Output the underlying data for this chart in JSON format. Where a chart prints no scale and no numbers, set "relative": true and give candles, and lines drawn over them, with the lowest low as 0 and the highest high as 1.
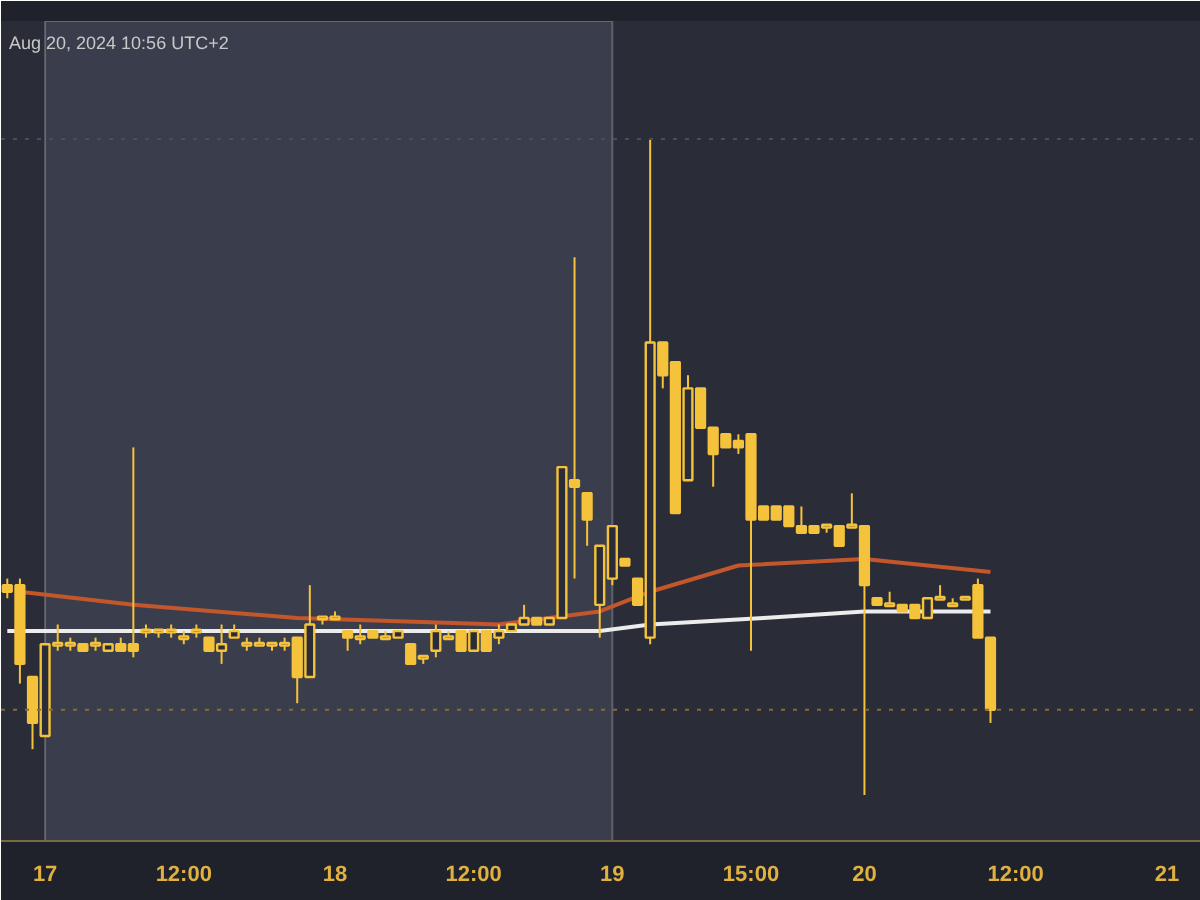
{
  "chart_data": {
    "type": "candlestick",
    "relative": true,
    "color": "#f5c23c",
    "annotations": [
      "Aug 20, 2024 10:56 UTC+2"
    ],
    "categories": [
      null,
      null,
      null,
      "17",
      null,
      null,
      null,
      null,
      null,
      null,
      null,
      null,
      null,
      null,
      "12:00",
      null,
      null,
      null,
      null,
      null,
      null,
      null,
      null,
      null,
      null,
      null,
      "18",
      null,
      null,
      null,
      null,
      null,
      null,
      null,
      null,
      null,
      null,
      "12:00",
      null,
      null,
      null,
      null,
      null,
      null,
      null,
      null,
      null,
      null,
      "19",
      null,
      null,
      null,
      null,
      null,
      null,
      null,
      null,
      null,
      null,
      "15:00",
      null,
      null,
      null,
      null,
      null,
      null,
      null,
      null,
      "20",
      null,
      null,
      null,
      null,
      null,
      null,
      null,
      null,
      null,
      null,
      null,
      "12:00",
      null,
      null,
      null,
      null,
      null,
      null,
      null,
      null,
      null,
      null,
      null,
      "21",
      null,
      null
    ],
    "ohlc": [
      [
        0.32,
        0.33,
        0.3,
        0.31
      ],
      [
        0.32,
        0.33,
        0.17,
        0.2
      ],
      [
        0.18,
        0.18,
        0.07,
        0.11
      ],
      [
        0.09,
        0.23,
        0.09,
        0.23
      ],
      [
        0.23,
        0.26,
        0.22,
        0.23
      ],
      [
        0.23,
        0.24,
        0.22,
        0.23
      ],
      [
        0.23,
        0.23,
        0.22,
        0.22
      ],
      [
        0.23,
        0.24,
        0.22,
        0.23
      ],
      [
        0.22,
        0.23,
        0.22,
        0.23
      ],
      [
        0.23,
        0.24,
        0.22,
        0.22
      ],
      [
        0.23,
        0.53,
        0.21,
        0.22
      ],
      [
        0.25,
        0.26,
        0.24,
        0.25
      ],
      [
        0.25,
        0.25,
        0.24,
        0.25
      ],
      [
        0.25,
        0.26,
        0.24,
        0.25
      ],
      [
        0.24,
        0.25,
        0.23,
        0.24
      ],
      [
        0.25,
        0.26,
        0.24,
        0.25
      ],
      [
        0.24,
        0.24,
        0.22,
        0.22
      ],
      [
        0.22,
        0.26,
        0.2,
        0.23
      ],
      [
        0.24,
        0.26,
        0.24,
        0.25
      ],
      [
        0.23,
        0.24,
        0.22,
        0.23
      ],
      [
        0.23,
        0.24,
        0.23,
        0.23
      ],
      [
        0.23,
        0.23,
        0.22,
        0.23
      ],
      [
        0.23,
        0.24,
        0.22,
        0.23
      ],
      [
        0.24,
        0.24,
        0.14,
        0.18
      ],
      [
        0.18,
        0.32,
        0.18,
        0.26
      ],
      [
        0.27,
        0.27,
        0.26,
        0.27
      ],
      [
        0.27,
        0.28,
        0.27,
        0.27
      ],
      [
        0.25,
        0.25,
        0.22,
        0.24
      ],
      [
        0.24,
        0.26,
        0.23,
        0.24
      ],
      [
        0.25,
        0.25,
        0.24,
        0.24
      ],
      [
        0.24,
        0.25,
        0.24,
        0.24
      ],
      [
        0.24,
        0.25,
        0.24,
        0.25
      ],
      [
        0.23,
        0.23,
        0.2,
        0.2
      ],
      [
        0.21,
        0.21,
        0.2,
        0.21
      ],
      [
        0.22,
        0.26,
        0.21,
        0.25
      ],
      [
        0.24,
        0.25,
        0.24,
        0.24
      ],
      [
        0.25,
        0.25,
        0.22,
        0.22
      ],
      [
        0.22,
        0.25,
        0.22,
        0.25
      ],
      [
        0.25,
        0.25,
        0.22,
        0.22
      ],
      [
        0.24,
        0.26,
        0.23,
        0.25
      ],
      [
        0.25,
        0.26,
        0.25,
        0.26
      ],
      [
        0.26,
        0.29,
        0.26,
        0.27
      ],
      [
        0.27,
        0.27,
        0.26,
        0.26
      ],
      [
        0.26,
        0.27,
        0.26,
        0.27
      ],
      [
        0.27,
        0.5,
        0.27,
        0.5
      ],
      [
        0.48,
        0.82,
        0.33,
        0.47
      ],
      [
        0.46,
        0.46,
        0.38,
        0.42
      ],
      [
        0.29,
        0.38,
        0.24,
        0.38
      ],
      [
        0.33,
        0.41,
        0.32,
        0.41
      ],
      [
        0.36,
        0.36,
        0.35,
        0.35
      ],
      [
        0.33,
        0.33,
        0.29,
        0.29
      ],
      [
        0.24,
        1.0,
        0.23,
        0.69
      ],
      [
        0.69,
        0.69,
        0.62,
        0.64
      ],
      [
        0.66,
        0.66,
        0.43,
        0.43
      ],
      [
        0.48,
        0.64,
        0.48,
        0.62
      ],
      [
        0.62,
        0.62,
        0.56,
        0.56
      ],
      [
        0.56,
        0.56,
        0.47,
        0.52
      ],
      [
        0.55,
        0.55,
        0.53,
        0.53
      ],
      [
        0.54,
        0.55,
        0.52,
        0.53
      ],
      [
        0.55,
        0.55,
        0.22,
        0.42
      ],
      [
        0.44,
        0.44,
        0.42,
        0.42
      ],
      [
        0.44,
        0.44,
        0.42,
        0.42
      ],
      [
        0.44,
        0.44,
        0.41,
        0.41
      ],
      [
        0.41,
        0.44,
        0.4,
        0.4
      ],
      [
        0.41,
        0.41,
        0.4,
        0.4
      ],
      [
        0.41,
        0.41,
        0.4,
        0.41
      ],
      [
        0.41,
        0.41,
        0.38,
        0.38
      ],
      [
        0.41,
        0.46,
        0.41,
        0.41
      ],
      [
        0.41,
        0.41,
        0.0,
        0.32
      ],
      [
        0.3,
        0.3,
        0.29,
        0.29
      ],
      [
        0.29,
        0.31,
        0.29,
        0.29
      ],
      [
        0.29,
        0.29,
        0.28,
        0.28
      ],
      [
        0.29,
        0.29,
        0.27,
        0.27
      ],
      [
        0.27,
        0.3,
        0.27,
        0.3
      ],
      [
        0.3,
        0.32,
        0.3,
        0.3
      ],
      [
        0.29,
        0.3,
        0.29,
        0.29
      ],
      [
        0.3,
        0.3,
        0.3,
        0.3
      ],
      [
        0.32,
        0.33,
        0.24,
        0.24
      ],
      [
        0.24,
        0.24,
        0.11,
        0.13
      ],
      null,
      null,
      null,
      null,
      null,
      null,
      null,
      null,
      null,
      null,
      null,
      null,
      null,
      null,
      null,
      null
    ],
    "series": [
      {
        "type": "line",
        "color": "#c4562c",
        "values": [
          null,
          0.31,
          null,
          null,
          null,
          null,
          null,
          null,
          null,
          null,
          0.29,
          null,
          null,
          null,
          null,
          null,
          null,
          null,
          null,
          null,
          null,
          null,
          null,
          0.27,
          null,
          null,
          null,
          null,
          null,
          null,
          null,
          null,
          null,
          null,
          null,
          null,
          null,
          null,
          null,
          0.26,
          null,
          null,
          null,
          null,
          null,
          null,
          null,
          0.28,
          null,
          null,
          null,
          0.31,
          null,
          null,
          null,
          null,
          null,
          null,
          0.35,
          null,
          null,
          null,
          null,
          null,
          null,
          null,
          null,
          null,
          0.36,
          null,
          null,
          null,
          null,
          null,
          null,
          null,
          null,
          null,
          0.34,
          null,
          null,
          null,
          null,
          null,
          null,
          null,
          null,
          null,
          null,
          null,
          null,
          null,
          null,
          null,
          null
        ]
      },
      {
        "type": "line",
        "color": "#ececec",
        "values": [
          0.25,
          null,
          null,
          null,
          null,
          null,
          null,
          null,
          null,
          null,
          null,
          null,
          null,
          null,
          null,
          null,
          null,
          null,
          null,
          null,
          null,
          null,
          null,
          0.25,
          null,
          null,
          null,
          null,
          null,
          null,
          null,
          null,
          null,
          null,
          null,
          null,
          null,
          null,
          null,
          null,
          null,
          null,
          null,
          null,
          null,
          null,
          null,
          0.25,
          null,
          null,
          null,
          0.26,
          null,
          null,
          null,
          null,
          null,
          null,
          null,
          null,
          0.27,
          null,
          null,
          null,
          null,
          null,
          null,
          null,
          0.28,
          null,
          null,
          null,
          null,
          null,
          null,
          null,
          null,
          null,
          0.28,
          null,
          null,
          null,
          null,
          null,
          null,
          null,
          null,
          null,
          null,
          null,
          null,
          null,
          null,
          null,
          null
        ]
      }
    ],
    "ref_lines": [
      {
        "axis": "y",
        "value": 0.13,
        "color": "#8a6a34",
        "line_style": "dotted"
      },
      {
        "axis": "y",
        "value": 1.0,
        "color": "#4a4e5c",
        "line_style": "dotted"
      }
    ],
    "bands": [
      {
        "axis": "x",
        "from": "17",
        "to": "19",
        "color": "#3a3e4c"
      }
    ]
  }
}
